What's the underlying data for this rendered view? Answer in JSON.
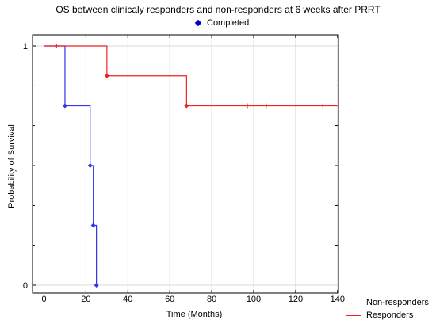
{
  "chart_data": {
    "type": "line",
    "title": "OS between clinicaly responders and non-responders at 6 weeks after PRRT",
    "xlabel": "Time (Months)",
    "ylabel": "Probability of Survival",
    "xlim": [
      -5,
      140
    ],
    "ylim": [
      0,
      1
    ],
    "x_ticks": [
      0,
      20,
      40,
      60,
      80,
      100,
      120,
      140
    ],
    "x_tick_labels": [
      "0",
      "20",
      "40",
      "60",
      "80",
      "100",
      "120",
      "140"
    ],
    "y_tick_labels": [
      {
        "value": 1,
        "label": "1"
      },
      {
        "value": 0,
        "label": "0"
      }
    ],
    "y_minor_ticks": [
      0.167,
      0.333,
      0.5,
      0.667,
      0.833
    ],
    "grid": true,
    "completed_label": "Completed",
    "completed_color": "#0000cc",
    "series": [
      {
        "name": "Non-responders",
        "color": "#3333ee",
        "steps": [
          [
            0,
            1
          ],
          [
            10,
            0.75
          ],
          [
            22,
            0.5
          ],
          [
            23.5,
            0.25
          ],
          [
            25,
            0
          ]
        ],
        "completed": [
          [
            10,
            0.75
          ],
          [
            22,
            0.5
          ],
          [
            23.5,
            0.25
          ],
          [
            25,
            0
          ]
        ],
        "censored": []
      },
      {
        "name": "Responders",
        "color": "#ee2222",
        "steps": [
          [
            0,
            1
          ],
          [
            30,
            0.875
          ],
          [
            68,
            0.75
          ]
        ],
        "end_x": 140,
        "completed": [
          [
            30,
            0.875
          ],
          [
            68,
            0.75
          ]
        ],
        "censored": [
          [
            6,
            1
          ],
          [
            97,
            0.75
          ],
          [
            106,
            0.75
          ],
          [
            133,
            0.75
          ]
        ]
      }
    ]
  }
}
